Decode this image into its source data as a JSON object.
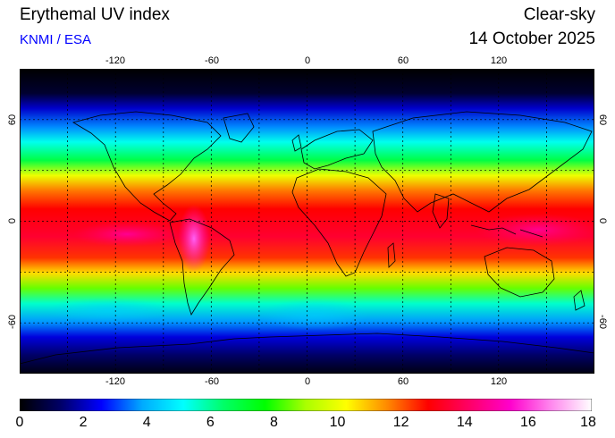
{
  "header": {
    "title": "Erythemal UV index",
    "credit": "KNMI / ESA",
    "mode": "Clear-sky",
    "date": "14 October 2025"
  },
  "colors": {
    "credit": "#0000ff"
  },
  "map": {
    "projection": "equirectangular",
    "lon_range": [
      -180,
      180
    ],
    "lat_range": [
      -90,
      90
    ],
    "lon_ticks": [
      "-120",
      "-60",
      "0",
      "60",
      "120"
    ],
    "lat_ticks": [
      "60",
      "0",
      "-60"
    ],
    "grid": "dotted every 30 degrees"
  },
  "colorbar": {
    "min": 0,
    "max": 18,
    "labels": [
      "0",
      "2",
      "4",
      "6",
      "8",
      "10",
      "12",
      "14",
      "16",
      "18"
    ],
    "stops": [
      "#000000",
      "#000066",
      "#0000ff",
      "#00aaff",
      "#00ffff",
      "#00ff66",
      "#00ff00",
      "#aaff00",
      "#ffff00",
      "#ff8800",
      "#ff0000",
      "#ff0066",
      "#ff00cc",
      "#ff88ee",
      "#ffffff"
    ]
  }
}
